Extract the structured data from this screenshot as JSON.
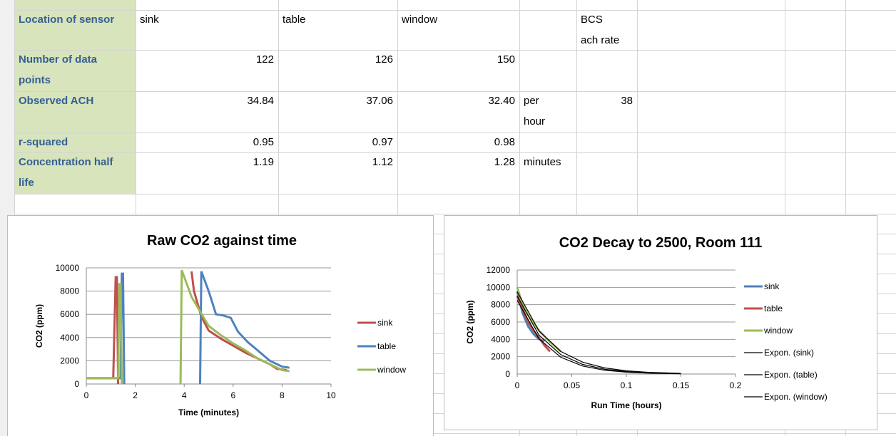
{
  "table": {
    "rows": [
      {
        "label": "Location of sensor",
        "values": [
          "sink",
          "table",
          "window"
        ],
        "bcs": "BCS ach rate"
      },
      {
        "label": "Number of data points",
        "values": [
          122,
          126,
          150
        ]
      },
      {
        "label": "Observed ACH",
        "values": [
          "34.84",
          "37.06",
          "32.40"
        ],
        "unit": "per hour",
        "bcs": 38
      },
      {
        "label": "r-squared",
        "values": [
          "0.95",
          "0.97",
          "0.98"
        ]
      },
      {
        "label": "Concentration half life",
        "values": [
          "1.19",
          "1.12",
          "1.28"
        ],
        "unit": "minutes"
      }
    ]
  },
  "chart_data": [
    {
      "type": "line",
      "title": "Raw CO2 against time",
      "x_label": "Time (minutes)",
      "y_label": "CO2 (ppm)",
      "xlim": [
        0,
        10
      ],
      "xticks": [
        0,
        2,
        4,
        6,
        8,
        10
      ],
      "ylim": [
        0,
        10000
      ],
      "yticks": [
        0,
        2000,
        4000,
        6000,
        8000,
        10000
      ],
      "grid": true,
      "legend": "right",
      "series": [
        {
          "name": "sink",
          "color": "#c0504d",
          "x": [
            0,
            1.1,
            1.2,
            1.25,
            1.3,
            null,
            4.3,
            4.4,
            4.7,
            5.0,
            5.5,
            6.0,
            6.5,
            7.0,
            7.5,
            7.8,
            8.2
          ],
          "values": [
            500,
            500,
            9200,
            9200,
            0,
            null,
            9700,
            8000,
            5800,
            4600,
            3900,
            3300,
            2700,
            2200,
            1700,
            1300,
            1200
          ]
        },
        {
          "name": "table",
          "color": "#4f81bd",
          "x": [
            0,
            1.4,
            1.45,
            1.5,
            1.55,
            null,
            4.65,
            4.7,
            5.0,
            5.3,
            5.6,
            5.9,
            6.2,
            6.6,
            7.0,
            7.5,
            8.0,
            8.3
          ],
          "values": [
            500,
            500,
            9500,
            9500,
            0,
            null,
            0,
            9700,
            8000,
            6000,
            5900,
            5700,
            4500,
            3600,
            2900,
            2000,
            1500,
            1400
          ]
        },
        {
          "name": "window",
          "color": "#9bbb59",
          "x": [
            0,
            1.3,
            1.35,
            1.4,
            1.45,
            null,
            3.85,
            3.9,
            4.3,
            5.0,
            5.5,
            6.0,
            6.5,
            7.0,
            7.5,
            8.0,
            8.3
          ],
          "values": [
            500,
            500,
            8600,
            8600,
            0,
            null,
            0,
            9800,
            7500,
            5000,
            4200,
            3500,
            2900,
            2200,
            1700,
            1200,
            1100
          ]
        }
      ]
    },
    {
      "type": "line",
      "title": "CO2 Decay to 2500, Room 111",
      "x_label": "Run Time (hours)",
      "y_label": "CO2 (ppm)",
      "xlim": [
        0,
        0.2
      ],
      "xticks": [
        0,
        0.05,
        0.1,
        0.15,
        0.2
      ],
      "ylim": [
        0,
        12000
      ],
      "yticks": [
        0,
        2000,
        4000,
        6000,
        8000,
        10000,
        12000
      ],
      "grid": true,
      "legend": "right",
      "series": [
        {
          "name": "sink",
          "color": "#4f81bd",
          "x": [
            0,
            0.005,
            0.01,
            0.015,
            0.02,
            0.025
          ],
          "values": [
            9500,
            7000,
            5500,
            4600,
            4000,
            3800
          ]
        },
        {
          "name": "table",
          "color": "#c0504d",
          "x": [
            0,
            0.005,
            0.01,
            0.015,
            0.02,
            0.025,
            0.03
          ],
          "values": [
            9000,
            7500,
            6000,
            5000,
            4200,
            3300,
            2600
          ]
        },
        {
          "name": "window",
          "color": "#9bbb59",
          "x": [
            0,
            0.005,
            0.01,
            0.02,
            0.03,
            0.04
          ],
          "values": [
            10000,
            8000,
            6800,
            5000,
            3700,
            2600
          ]
        },
        {
          "name": "Expon. (sink)",
          "color": "#000000",
          "x": [
            0,
            0.02,
            0.04,
            0.06,
            0.08,
            0.1,
            0.12
          ],
          "values": [
            9000,
            4480,
            2230,
            1110,
            554,
            276,
            138
          ]
        },
        {
          "name": "Expon. (table)",
          "color": "#000000",
          "x": [
            0,
            0.02,
            0.04,
            0.06,
            0.08,
            0.1,
            0.12,
            0.15
          ],
          "values": [
            8500,
            4050,
            1930,
            920,
            439,
            209,
            100,
            33
          ]
        },
        {
          "name": "Expon. (window)",
          "color": "#000000",
          "x": [
            0,
            0.02,
            0.04,
            0.06,
            0.08,
            0.1,
            0.12,
            0.15
          ],
          "values": [
            9500,
            4970,
            2600,
            1360,
            711,
            372,
            195,
            74
          ]
        }
      ]
    }
  ]
}
